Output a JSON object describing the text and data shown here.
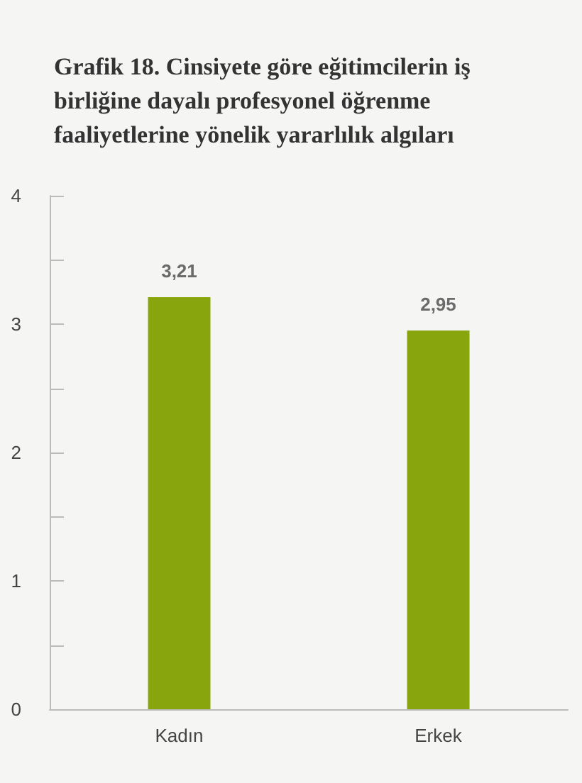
{
  "chart_data": {
    "type": "bar",
    "title": "Grafik 18. Cinsiyete göre eğitimcilerin iş birliğine dayalı profesyonel öğrenme faaliyetlerine yönelik yararlılık algıları",
    "categories": [
      "Kadın",
      "Erkek"
    ],
    "values": [
      3.21,
      2.95
    ],
    "value_labels": [
      "3,21",
      "2,95"
    ],
    "color": "#88a50e",
    "ylim": [
      0,
      4
    ],
    "yticks": [
      0,
      {
        "value": 0.5,
        "label": null
      },
      1,
      {
        "value": 1.5,
        "label": null
      },
      2,
      {
        "value": 2.5,
        "label": null
      },
      3,
      {
        "value": 3.5,
        "label": null
      },
      4
    ],
    "grid": false
  }
}
